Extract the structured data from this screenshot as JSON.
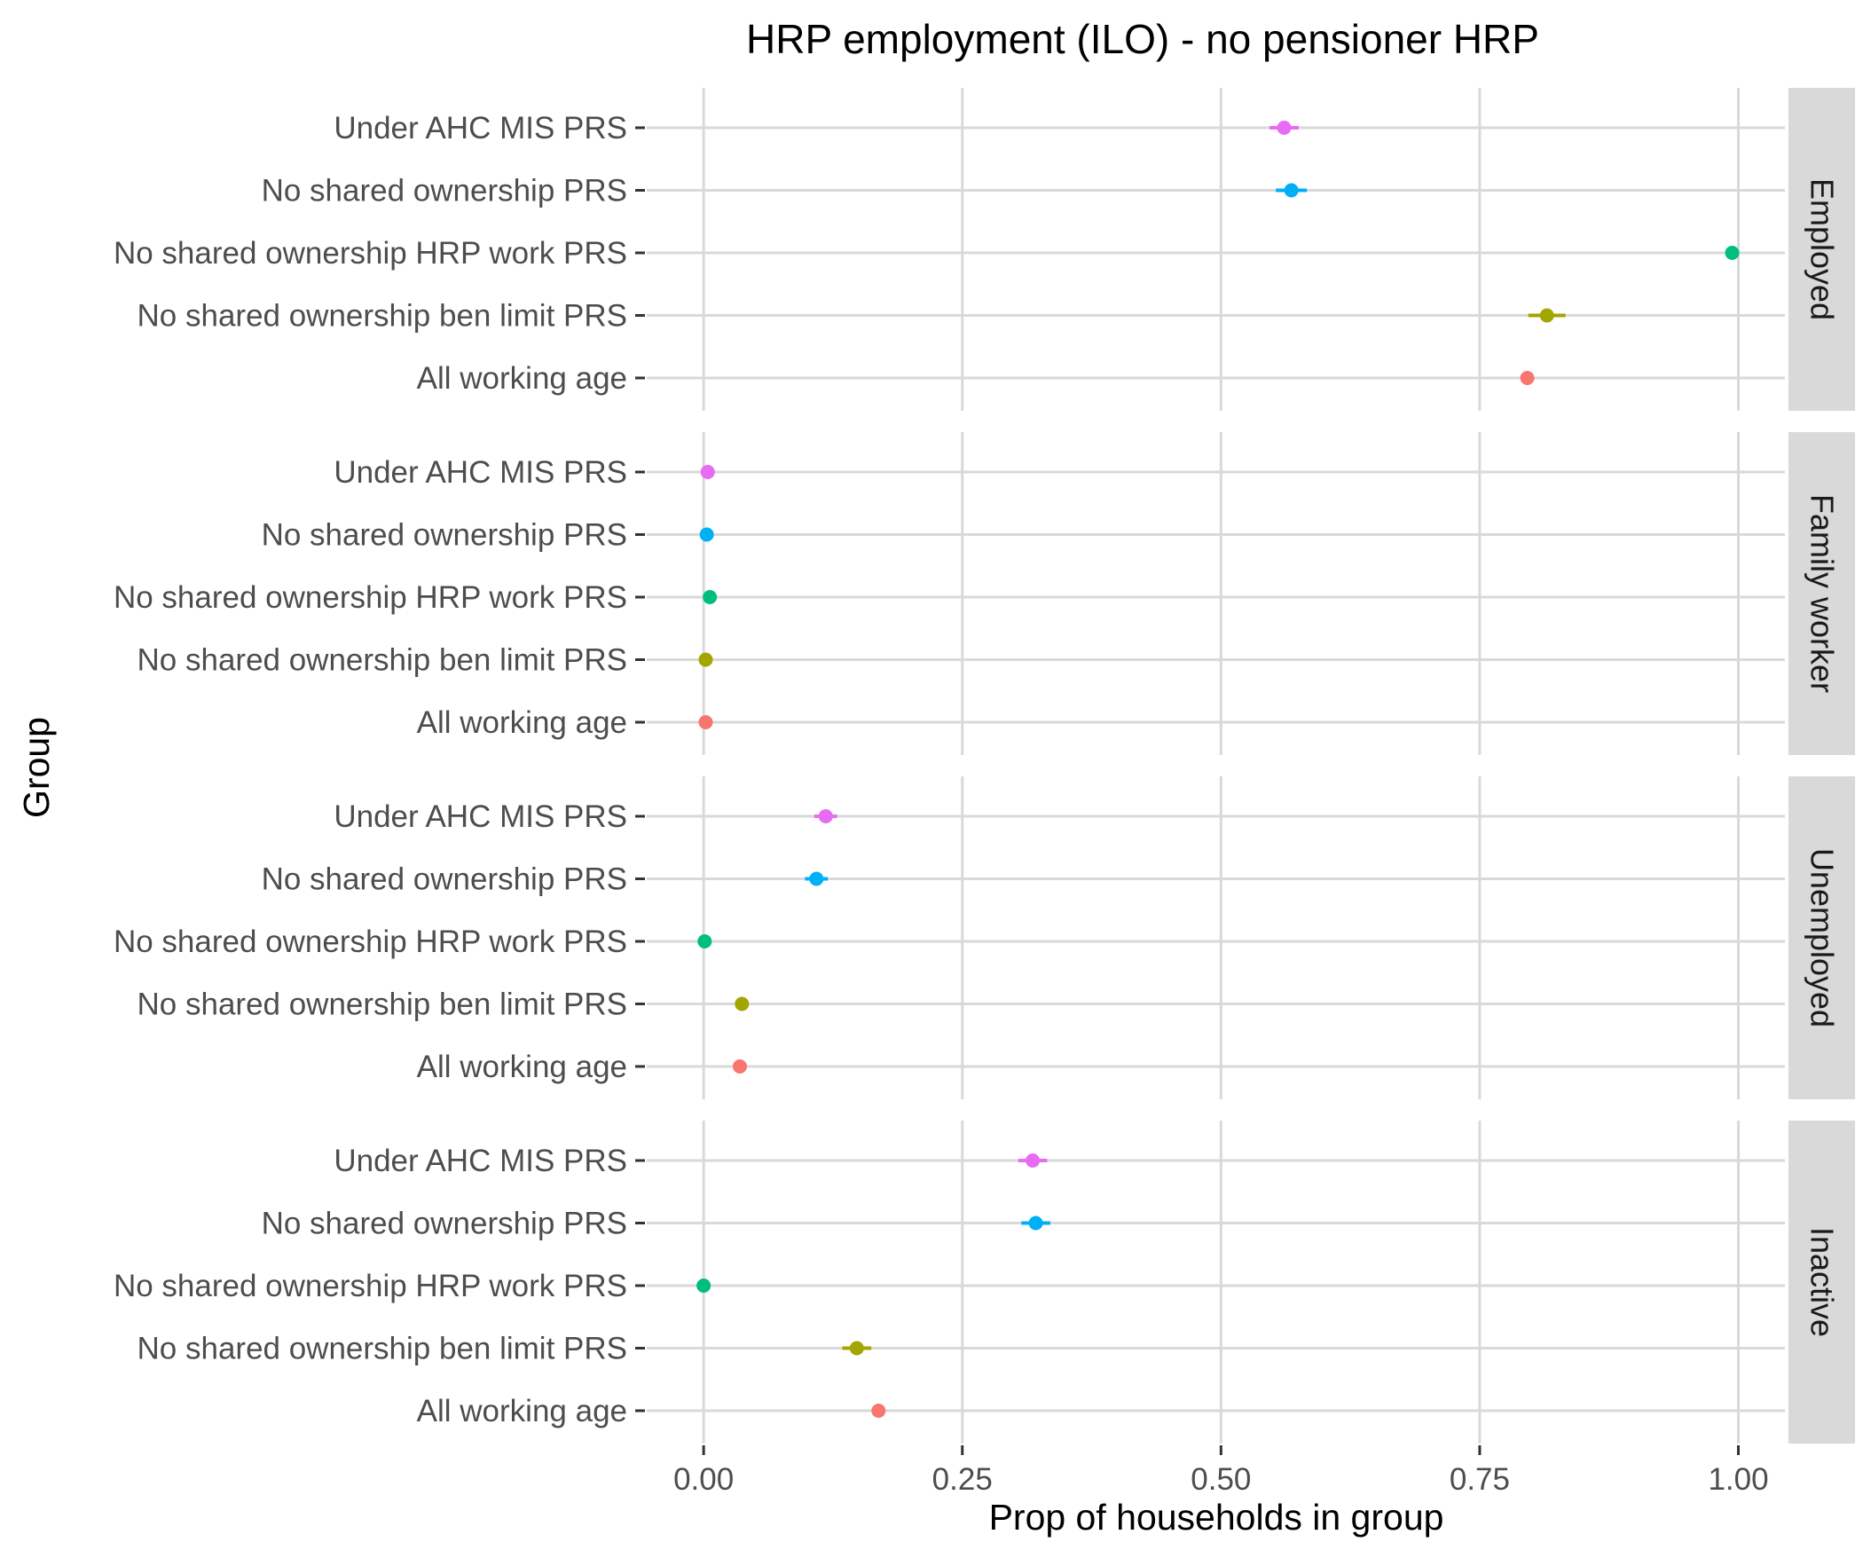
{
  "chart_data": {
    "type": "dot-errorbar",
    "title": "HRP employment (ILO) - no pensioner HRP",
    "xlabel": "Prop of households in group",
    "ylabel": "Group",
    "xlim": [
      -0.055,
      1.045
    ],
    "x_ticks": [
      0.0,
      0.25,
      0.5,
      0.75,
      1.0
    ],
    "x_tick_labels": [
      "0.00",
      "0.25",
      "0.50",
      "0.75",
      "1.00"
    ],
    "grid": true,
    "legend": "none",
    "categories": [
      "Under AHC MIS PRS",
      "No shared ownership PRS",
      "No shared ownership HRP work PRS",
      "No shared ownership ben limit PRS",
      "All working age"
    ],
    "category_colors": [
      "#E76BF3",
      "#00B0F6",
      "#00BF7D",
      "#A3A500",
      "#F8766D"
    ],
    "facets": [
      {
        "label": "Employed",
        "points": [
          {
            "x": 0.561,
            "lo": 0.547,
            "hi": 0.575
          },
          {
            "x": 0.568,
            "lo": 0.553,
            "hi": 0.583
          },
          {
            "x": 0.994,
            "lo": 0.991,
            "hi": 0.997
          },
          {
            "x": 0.815,
            "lo": 0.797,
            "hi": 0.833
          },
          {
            "x": 0.796,
            "lo": 0.79,
            "hi": 0.802
          }
        ]
      },
      {
        "label": "Family worker",
        "points": [
          {
            "x": 0.004,
            "lo": 0.002,
            "hi": 0.006
          },
          {
            "x": 0.003,
            "lo": 0.001,
            "hi": 0.005
          },
          {
            "x": 0.006,
            "lo": 0.003,
            "hi": 0.009
          },
          {
            "x": 0.002,
            "lo": 0.0,
            "hi": 0.004
          },
          {
            "x": 0.002,
            "lo": 0.001,
            "hi": 0.003
          }
        ]
      },
      {
        "label": "Unemployed",
        "points": [
          {
            "x": 0.118,
            "lo": 0.107,
            "hi": 0.129
          },
          {
            "x": 0.109,
            "lo": 0.098,
            "hi": 0.12
          },
          {
            "x": 0.001,
            "lo": 0.0,
            "hi": 0.002
          },
          {
            "x": 0.037,
            "lo": 0.031,
            "hi": 0.043
          },
          {
            "x": 0.035,
            "lo": 0.032,
            "hi": 0.038
          }
        ]
      },
      {
        "label": "Inactive",
        "points": [
          {
            "x": 0.318,
            "lo": 0.304,
            "hi": 0.332
          },
          {
            "x": 0.321,
            "lo": 0.307,
            "hi": 0.335
          },
          {
            "x": 0.0,
            "lo": 0.0,
            "hi": 0.0
          },
          {
            "x": 0.148,
            "lo": 0.134,
            "hi": 0.162
          },
          {
            "x": 0.169,
            "lo": 0.165,
            "hi": 0.173
          }
        ]
      }
    ]
  }
}
